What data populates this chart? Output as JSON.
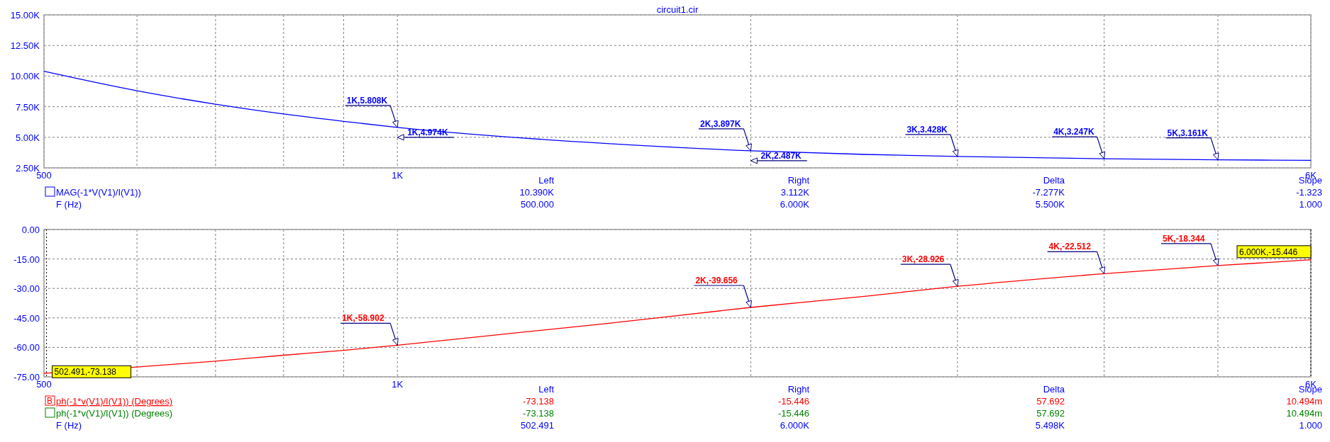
{
  "chart_data": [
    {
      "type": "line",
      "title": "circuit1.cir",
      "log": "x",
      "grid": true,
      "legend": "bottom",
      "xlim": [
        500,
        6000
      ],
      "ylim": [
        2500,
        15000
      ],
      "xticks": [
        {
          "value": 500,
          "label": "500"
        },
        {
          "value": 600,
          "label": null
        },
        {
          "value": 700,
          "label": null
        },
        {
          "value": 800,
          "label": null
        },
        {
          "value": 900,
          "label": null
        },
        {
          "value": 1000,
          "label": "1K"
        },
        {
          "value": 2000,
          "label": null
        },
        {
          "value": 3000,
          "label": null
        },
        {
          "value": 4000,
          "label": null
        },
        {
          "value": 5000,
          "label": null
        },
        {
          "value": 6000,
          "label": "6K"
        }
      ],
      "yticks": [
        {
          "value": 2500,
          "label": "2.50K"
        },
        {
          "value": 5000,
          "label": "5.00K"
        },
        {
          "value": 7500,
          "label": "7.50K"
        },
        {
          "value": 10000,
          "label": "10.00K"
        },
        {
          "value": 12500,
          "label": "12.50K"
        },
        {
          "value": 15000,
          "label": "15.00K"
        }
      ],
      "x": [
        500,
        600,
        700,
        800,
        900,
        1000,
        1500,
        2000,
        2500,
        3000,
        4000,
        5000,
        6000
      ],
      "series": [
        {
          "name": "MAG(-1*V(V1)/I(V1))",
          "color": "#0000ff",
          "values": [
            10390,
            8800,
            7700,
            6900,
            6300,
            5808,
            4500,
            3897,
            3600,
            3428,
            3247,
            3161,
            3112
          ]
        }
      ],
      "annotations": [
        "Left",
        "Right",
        "Delta",
        "Slope",
        "10.390K",
        "3.112K",
        "-7.277K",
        "-1.323",
        "F (Hz)",
        "500.000",
        "6.000K",
        "5.500K",
        "1.000",
        {
          "text": "1K,5.808K",
          "x": 1000,
          "y": 5808
        },
        "1K,4.974K",
        {
          "text": "2K,3.897K",
          "x": 2000,
          "y": 3897
        },
        "2K,2.487K",
        {
          "text": "3K,3.428K",
          "x": 3000,
          "y": 3428
        },
        {
          "text": "4K,3.247K",
          "x": 4000,
          "y": 3247
        },
        {
          "text": "5K,3.161K",
          "x": 5000,
          "y": 3161
        }
      ]
    },
    {
      "type": "line",
      "log": "x",
      "grid": true,
      "legend": "bottom",
      "xlim": [
        500,
        6000
      ],
      "ylim": [
        -75,
        0
      ],
      "xticks": [
        {
          "value": 500,
          "label": "500"
        },
        {
          "value": 600,
          "label": null
        },
        {
          "value": 700,
          "label": null
        },
        {
          "value": 800,
          "label": null
        },
        {
          "value": 900,
          "label": null
        },
        {
          "value": 1000,
          "label": "1K"
        },
        {
          "value": 2000,
          "label": null
        },
        {
          "value": 3000,
          "label": null
        },
        {
          "value": 4000,
          "label": null
        },
        {
          "value": 5000,
          "label": null
        },
        {
          "value": 6000,
          "label": "6K"
        }
      ],
      "yticks": [
        {
          "value": -75,
          "label": "-75.00"
        },
        {
          "value": -60,
          "label": "-60.00"
        },
        {
          "value": -45,
          "label": "-45.00"
        },
        {
          "value": -30,
          "label": "-30.00"
        },
        {
          "value": -15,
          "label": "-15.00"
        },
        {
          "value": 0,
          "label": "0.00"
        }
      ],
      "x": [
        500,
        600,
        700,
        800,
        900,
        1000,
        1500,
        2000,
        2500,
        3000,
        4000,
        5000,
        6000
      ],
      "series": [
        {
          "name": "ph(-1*v(V1)/I(V1)) (Degrees)",
          "color": "#ff0000",
          "values": [
            -73.2,
            -70,
            -67,
            -64,
            -61.5,
            -58.902,
            -48,
            -39.656,
            -34,
            -28.926,
            -22.512,
            -18.344,
            -15.446
          ]
        }
      ],
      "ref_lines": [
        {
          "axis": "x",
          "value": 502.491,
          "line_style": "dotted",
          "color": "#000000"
        },
        {
          "axis": "x",
          "value": 6000,
          "line_style": "dotted",
          "color": "#000000"
        }
      ],
      "annotations": [
        "B",
        "Left",
        "Right",
        "Delta",
        "Slope",
        "-73.138",
        "-15.446",
        "57.692",
        "10.494m",
        "ph(-1*v(V1)/I(V1)) (Degrees)",
        "-73.138",
        "-15.446",
        "57.692",
        "10.494m",
        "F (Hz)",
        "502.491",
        "6.000K",
        "5.498K",
        "1.000",
        {
          "text": "502.491,-73.138",
          "x": 502.491,
          "y": -73.138
        },
        {
          "text": "1K,-58.902",
          "x": 1000,
          "y": -58.902
        },
        {
          "text": "2K,-39.656",
          "x": 2000,
          "y": -39.656
        },
        {
          "text": "3K,-28.926",
          "x": 3000,
          "y": -28.926
        },
        {
          "text": "4K,-22.512",
          "x": 4000,
          "y": -22.512
        },
        {
          "text": "5K,-18.344",
          "x": 5000,
          "y": -18.344
        },
        {
          "text": "6.000K,-15.446",
          "x": 6000,
          "y": -15.446
        }
      ]
    }
  ]
}
